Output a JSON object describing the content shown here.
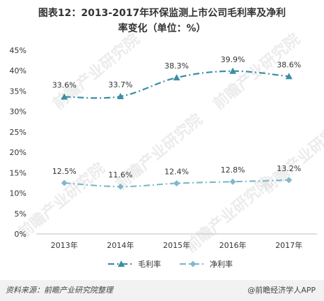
{
  "title_line1": "图表12：2013-2017年环保监测上市公司毛利率及净利",
  "title_line2": "率变化（单位：%）",
  "watermark": "前瞻产业研究院",
  "source": "资料来源：前瞻产业研究院整理",
  "brand": "@前瞻经济学人APP",
  "chart_data": {
    "type": "line",
    "categories": [
      "2013年",
      "2014年",
      "2015年",
      "2016年",
      "2017年"
    ],
    "ylim": [
      0,
      45
    ],
    "yticks": [
      "0%",
      "5%",
      "10%",
      "15%",
      "20%",
      "25%",
      "30%",
      "35%",
      "40%",
      "45%"
    ],
    "legend_position": "bottom",
    "grid": false,
    "series": [
      {
        "name": "毛利率",
        "values": [
          33.6,
          33.7,
          38.3,
          39.9,
          38.6
        ],
        "labels": [
          "33.6%",
          "33.7%",
          "38.3%",
          "39.9%",
          "38.6%"
        ],
        "color": "#3a8fa3",
        "marker": "triangle"
      },
      {
        "name": "净利率",
        "values": [
          12.5,
          11.6,
          12.4,
          12.8,
          13.2
        ],
        "labels": [
          "12.5%",
          "11.6%",
          "12.4%",
          "12.8%",
          "13.2%"
        ],
        "color": "#7fb9cc",
        "marker": "diamond"
      }
    ]
  }
}
